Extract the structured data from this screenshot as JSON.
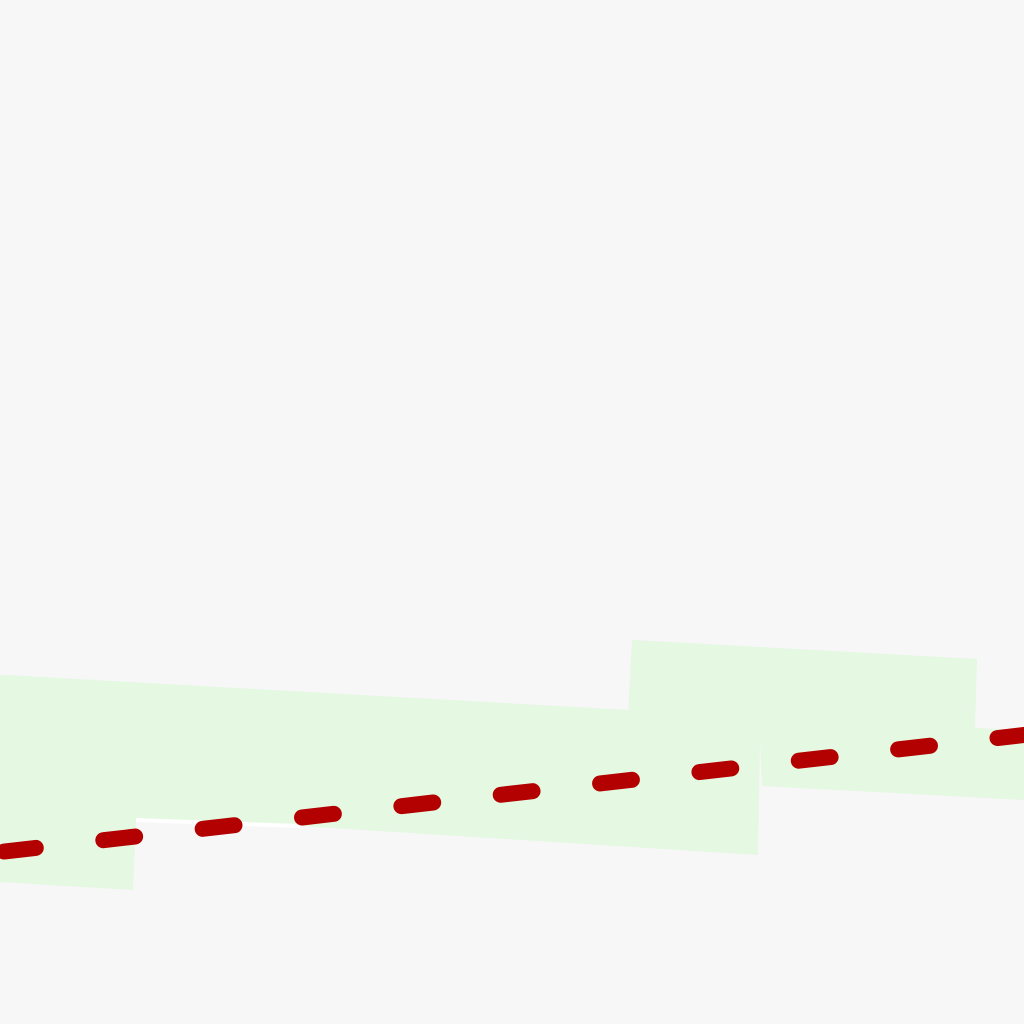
{
  "map": {
    "colors": {
      "background": "#f7f7f7",
      "green_area": "#e4f8e2",
      "route": "#b30000",
      "road_casing": "#ffffff"
    },
    "route_style": "dashed"
  }
}
